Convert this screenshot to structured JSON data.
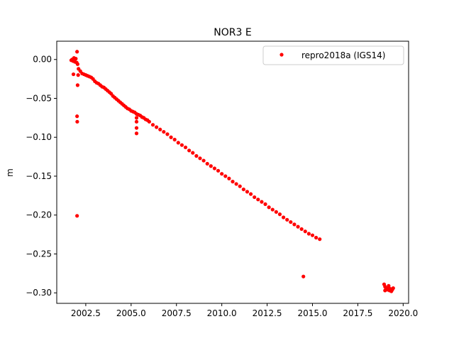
{
  "chart_data": {
    "type": "scatter",
    "title": "NOR3 E",
    "xlabel": "",
    "ylabel": "m",
    "xlim": [
      2000.9,
      2020.3
    ],
    "ylim": [
      -0.3135,
      0.0235
    ],
    "xticks": [
      2002.5,
      2005.0,
      2007.5,
      2010.0,
      2012.5,
      2015.0,
      2017.5,
      2020.0
    ],
    "xtick_labels": [
      "2002.5",
      "2005.0",
      "2007.5",
      "2010.0",
      "2012.5",
      "2015.0",
      "2017.5",
      "2020.0"
    ],
    "yticks": [
      0.0,
      -0.05,
      -0.1,
      -0.15,
      -0.2,
      -0.25,
      -0.3
    ],
    "ytick_labels": [
      "0.00",
      "−0.05",
      "−0.10",
      "−0.15",
      "−0.20",
      "−0.25",
      "−0.30"
    ],
    "grid": false,
    "legend_position": "top-right",
    "marker_color": "#ff0000",
    "series": [
      {
        "name": "repro2018a (IGS14)",
        "x": [
          2001.7,
          2001.75,
          2001.8,
          2001.85,
          2001.9,
          2001.95,
          2002.0,
          2002.05,
          2002.1,
          2002.2,
          2002.3,
          2002.4,
          2002.5,
          2002.6,
          2002.7,
          2002.8,
          2002.9,
          2003.0,
          2003.1,
          2003.2,
          2003.3,
          2003.4,
          2003.5,
          2003.6,
          2003.7,
          2003.8,
          2003.9,
          2004.0,
          2004.1,
          2004.2,
          2004.3,
          2004.4,
          2004.5,
          2004.6,
          2004.7,
          2004.8,
          2004.9,
          2005.0,
          2005.1,
          2005.2,
          2005.3,
          2005.4,
          2005.5,
          2005.6,
          2005.7,
          2005.8,
          2005.9,
          2006.0,
          2006.2,
          2006.4,
          2006.6,
          2006.8,
          2007.0,
          2007.2,
          2007.4,
          2007.6,
          2007.8,
          2008.0,
          2008.2,
          2008.4,
          2008.6,
          2008.8,
          2009.0,
          2009.2,
          2009.4,
          2009.6,
          2009.8,
          2010.0,
          2010.2,
          2010.4,
          2010.6,
          2010.8,
          2011.0,
          2011.2,
          2011.4,
          2011.6,
          2011.8,
          2012.0,
          2012.2,
          2012.4,
          2012.6,
          2012.8,
          2013.0,
          2013.2,
          2013.4,
          2013.6,
          2013.8,
          2014.0,
          2014.2,
          2014.4,
          2014.6,
          2014.8,
          2015.0,
          2015.2,
          2015.4,
          2002.02,
          2001.82,
          2002.05,
          2002.08,
          2002.02,
          2002.03,
          2002.02,
          2005.3,
          2005.3,
          2005.3,
          2005.3,
          2014.5,
          2018.95,
          2019.0,
          2019.05,
          2019.1,
          2019.15,
          2019.2,
          2019.25,
          2019.3,
          2019.35,
          2019.4,
          2019.45,
          2019.0,
          2019.2
        ],
        "y": [
          -0.001,
          0.0,
          -0.002,
          0.002,
          -0.003,
          0.001,
          -0.004,
          -0.006,
          -0.012,
          -0.015,
          -0.018,
          -0.019,
          -0.02,
          -0.021,
          -0.022,
          -0.023,
          -0.025,
          -0.028,
          -0.03,
          -0.031,
          -0.033,
          -0.035,
          -0.036,
          -0.038,
          -0.04,
          -0.042,
          -0.044,
          -0.047,
          -0.049,
          -0.051,
          -0.053,
          -0.055,
          -0.057,
          -0.059,
          -0.061,
          -0.063,
          -0.064,
          -0.066,
          -0.067,
          -0.068,
          -0.07,
          -0.071,
          -0.072,
          -0.074,
          -0.075,
          -0.077,
          -0.078,
          -0.08,
          -0.084,
          -0.087,
          -0.09,
          -0.093,
          -0.096,
          -0.1,
          -0.103,
          -0.107,
          -0.11,
          -0.113,
          -0.117,
          -0.12,
          -0.124,
          -0.127,
          -0.13,
          -0.134,
          -0.137,
          -0.14,
          -0.143,
          -0.147,
          -0.15,
          -0.153,
          -0.157,
          -0.16,
          -0.163,
          -0.167,
          -0.17,
          -0.173,
          -0.177,
          -0.18,
          -0.183,
          -0.186,
          -0.19,
          -0.193,
          -0.196,
          -0.199,
          -0.203,
          -0.206,
          -0.209,
          -0.212,
          -0.215,
          -0.218,
          -0.221,
          -0.224,
          -0.226,
          -0.229,
          -0.231,
          0.01,
          -0.019,
          -0.033,
          -0.02,
          -0.073,
          -0.08,
          -0.201,
          -0.075,
          -0.08,
          -0.088,
          -0.095,
          -0.279,
          -0.289,
          -0.292,
          -0.294,
          -0.295,
          -0.296,
          -0.293,
          -0.297,
          -0.295,
          -0.298,
          -0.296,
          -0.294,
          -0.297,
          -0.291
        ]
      }
    ]
  }
}
